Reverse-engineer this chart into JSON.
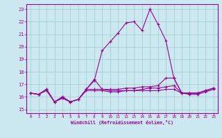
{
  "xlabel": "Windchill (Refroidissement éolien,°C)",
  "bg_color": "#cce8f0",
  "grid_color": "#99cccc",
  "line_color": "#990099",
  "xlim": [
    -0.5,
    23.5
  ],
  "ylim": [
    14.7,
    23.4
  ],
  "yticks": [
    15,
    16,
    17,
    18,
    19,
    20,
    21,
    22,
    23
  ],
  "xticks": [
    0,
    1,
    2,
    3,
    4,
    5,
    6,
    7,
    8,
    9,
    10,
    11,
    12,
    13,
    14,
    15,
    16,
    17,
    18,
    19,
    20,
    21,
    22,
    23
  ],
  "line1_x": [
    0,
    1,
    2,
    3,
    4,
    5,
    6,
    7,
    8,
    9,
    10,
    11,
    12,
    13,
    14,
    15,
    16,
    17,
    18,
    19,
    20,
    21,
    22,
    23
  ],
  "line1_y": [
    16.3,
    16.2,
    16.6,
    15.6,
    15.9,
    15.6,
    15.8,
    16.6,
    17.3,
    19.7,
    20.4,
    21.1,
    21.9,
    22.0,
    21.3,
    23.0,
    21.8,
    20.5,
    17.5,
    16.3,
    16.3,
    16.3,
    16.5,
    16.7
  ],
  "line2_x": [
    0,
    1,
    2,
    3,
    4,
    5,
    6,
    7,
    8,
    9,
    10,
    11,
    12,
    13,
    14,
    15,
    16,
    17,
    18,
    19,
    20,
    21,
    22,
    23
  ],
  "line2_y": [
    16.3,
    16.2,
    16.6,
    15.6,
    15.9,
    15.6,
    15.8,
    16.6,
    16.6,
    16.6,
    16.6,
    16.6,
    16.7,
    16.7,
    16.8,
    16.8,
    16.9,
    17.5,
    17.5,
    16.3,
    16.3,
    16.3,
    16.5,
    16.7
  ],
  "line3_x": [
    0,
    1,
    2,
    3,
    4,
    5,
    6,
    7,
    8,
    9,
    10,
    11,
    12,
    13,
    14,
    15,
    16,
    17,
    18,
    19,
    20,
    21,
    22,
    23
  ],
  "line3_y": [
    16.3,
    16.2,
    16.6,
    15.6,
    16.0,
    15.6,
    15.8,
    16.6,
    17.4,
    16.6,
    16.5,
    16.5,
    16.5,
    16.5,
    16.6,
    16.7,
    16.7,
    16.8,
    16.9,
    16.3,
    16.3,
    16.3,
    16.5,
    16.7
  ],
  "line4_x": [
    0,
    1,
    2,
    3,
    4,
    5,
    6,
    7,
    8,
    9,
    10,
    11,
    12,
    13,
    14,
    15,
    16,
    17,
    18,
    19,
    20,
    21,
    22,
    23
  ],
  "line4_y": [
    16.3,
    16.2,
    16.5,
    15.6,
    16.0,
    15.6,
    15.8,
    16.5,
    16.5,
    16.5,
    16.4,
    16.4,
    16.5,
    16.5,
    16.5,
    16.5,
    16.5,
    16.6,
    16.6,
    16.3,
    16.2,
    16.2,
    16.4,
    16.6
  ]
}
